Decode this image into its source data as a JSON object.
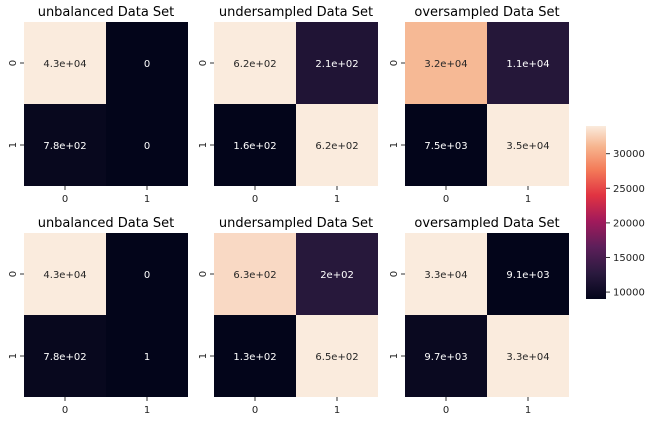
{
  "chart_data": [
    {
      "type": "heatmap",
      "title": "unbalanced Data Set",
      "x_ticks": [
        "0",
        "1"
      ],
      "y_ticks": [
        "0",
        "1"
      ],
      "values": [
        [
          43000,
          0
        ],
        [
          780,
          0
        ]
      ],
      "labels": [
        [
          "4.3e+04",
          "0"
        ],
        [
          "7.8e+02",
          "0"
        ]
      ]
    },
    {
      "type": "heatmap",
      "title": "undersampled Data Set",
      "x_ticks": [
        "0",
        "1"
      ],
      "y_ticks": [
        "0",
        "1"
      ],
      "values": [
        [
          620,
          210
        ],
        [
          160,
          620
        ]
      ],
      "labels": [
        [
          "6.2e+02",
          "2.1e+02"
        ],
        [
          "1.6e+02",
          "6.2e+02"
        ]
      ]
    },
    {
      "type": "heatmap",
      "title": "oversampled Data Set",
      "x_ticks": [
        "0",
        "1"
      ],
      "y_ticks": [
        "0",
        "1"
      ],
      "values": [
        [
          32000,
          11000
        ],
        [
          7500,
          35000
        ]
      ],
      "labels": [
        [
          "3.2e+04",
          "1.1e+04"
        ],
        [
          "7.5e+03",
          "3.5e+04"
        ]
      ]
    },
    {
      "type": "heatmap",
      "title": "unbalanced Data Set",
      "x_ticks": [
        "0",
        "1"
      ],
      "y_ticks": [
        "0",
        "1"
      ],
      "values": [
        [
          43000,
          0
        ],
        [
          780,
          1
        ]
      ],
      "labels": [
        [
          "4.3e+04",
          "0"
        ],
        [
          "7.8e+02",
          "1"
        ]
      ]
    },
    {
      "type": "heatmap",
      "title": "undersampled Data Set",
      "x_ticks": [
        "0",
        "1"
      ],
      "y_ticks": [
        "0",
        "1"
      ],
      "values": [
        [
          630,
          200
        ],
        [
          130,
          650
        ]
      ],
      "labels": [
        [
          "6.3e+02",
          "2e+02"
        ],
        [
          "1.3e+02",
          "6.5e+02"
        ]
      ]
    },
    {
      "type": "heatmap",
      "title": "oversampled Data Set",
      "x_ticks": [
        "0",
        "1"
      ],
      "y_ticks": [
        "0",
        "1"
      ],
      "values": [
        [
          33000,
          9100
        ],
        [
          9700,
          33000
        ]
      ],
      "labels": [
        [
          "3.3e+04",
          "9.1e+03"
        ],
        [
          "9.7e+03",
          "3.3e+04"
        ]
      ]
    }
  ],
  "colorbar": {
    "range": [
      9000,
      34000
    ],
    "ticks": [
      "10000",
      "15000",
      "20000",
      "25000",
      "30000"
    ],
    "tick_values": [
      10000,
      15000,
      20000,
      25000,
      30000
    ],
    "colormap": "rocket"
  },
  "colors": {
    "darkest": "#03051a",
    "lightest": "#faebdd",
    "label_on_dark": "#ffffff",
    "label_on_light": "#262626"
  }
}
